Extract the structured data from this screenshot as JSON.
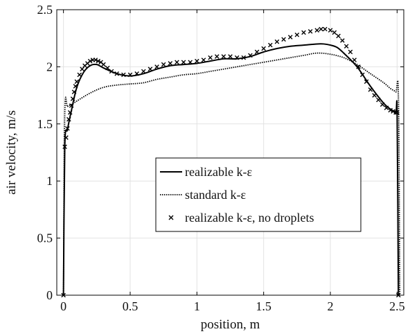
{
  "chart_data": {
    "type": "line",
    "title": "",
    "xlabel": "position, m",
    "ylabel": "air velocity, m/s",
    "xlim": [
      -0.05,
      2.55
    ],
    "ylim": [
      0,
      2.5
    ],
    "xticks": [
      0,
      0.5,
      1,
      1.5,
      2,
      2.5
    ],
    "xtick_labels": [
      "0",
      "0.5",
      "1",
      "1.5",
      "2",
      "2.5"
    ],
    "yticks": [
      0,
      0.5,
      1,
      1.5,
      2,
      2.5
    ],
    "ytick_labels": [
      "0",
      "0.5",
      "1",
      "1.5",
      "2",
      "2.5"
    ],
    "grid": true,
    "legend_position": "center",
    "series": [
      {
        "name": "realizable k-ε",
        "style": "solid",
        "color": "#000000",
        "x": [
          0,
          0.01,
          0.03,
          0.06,
          0.1,
          0.15,
          0.2,
          0.25,
          0.3,
          0.4,
          0.5,
          0.6,
          0.7,
          0.8,
          0.9,
          1.0,
          1.1,
          1.2,
          1.3,
          1.4,
          1.5,
          1.6,
          1.7,
          1.8,
          1.9,
          1.95,
          2.0,
          2.05,
          2.1,
          2.2,
          2.3,
          2.4,
          2.45,
          2.49,
          2.5,
          2.51
        ],
        "y": [
          0,
          1.3,
          1.45,
          1.62,
          1.82,
          1.95,
          2.01,
          2.02,
          1.99,
          1.94,
          1.92,
          1.94,
          1.98,
          2.01,
          2.02,
          2.03,
          2.05,
          2.07,
          2.07,
          2.09,
          2.13,
          2.16,
          2.18,
          2.19,
          2.2,
          2.2,
          2.19,
          2.17,
          2.12,
          2.0,
          1.83,
          1.68,
          1.63,
          1.6,
          1.58,
          0
        ]
      },
      {
        "name": "standard k-ε",
        "style": "dotted",
        "color": "#000000",
        "x": [
          0,
          0.01,
          0.03,
          0.06,
          0.1,
          0.2,
          0.3,
          0.4,
          0.5,
          0.6,
          0.7,
          0.8,
          0.9,
          1.0,
          1.1,
          1.2,
          1.3,
          1.4,
          1.5,
          1.6,
          1.7,
          1.8,
          1.9,
          2.0,
          2.1,
          2.2,
          2.3,
          2.4,
          2.45,
          2.49,
          2.51,
          2.52
        ],
        "y": [
          0,
          1.6,
          1.65,
          1.67,
          1.7,
          1.77,
          1.82,
          1.84,
          1.85,
          1.86,
          1.89,
          1.91,
          1.93,
          1.94,
          1.96,
          1.98,
          2.0,
          2.02,
          2.04,
          2.06,
          2.08,
          2.1,
          2.12,
          2.11,
          2.08,
          2.02,
          1.94,
          1.86,
          1.81,
          1.78,
          1.74,
          0
        ]
      },
      {
        "name": "realizable k-ε, no droplets",
        "style": "markers",
        "marker": "x",
        "color": "#000000",
        "x": [
          0,
          0.01,
          0.02,
          0.03,
          0.04,
          0.05,
          0.06,
          0.07,
          0.08,
          0.09,
          0.1,
          0.12,
          0.14,
          0.16,
          0.18,
          0.2,
          0.22,
          0.24,
          0.26,
          0.28,
          0.3,
          0.33,
          0.36,
          0.4,
          0.45,
          0.5,
          0.55,
          0.6,
          0.65,
          0.7,
          0.75,
          0.8,
          0.85,
          0.9,
          0.95,
          1.0,
          1.05,
          1.1,
          1.15,
          1.2,
          1.25,
          1.3,
          1.35,
          1.4,
          1.45,
          1.5,
          1.55,
          1.6,
          1.65,
          1.7,
          1.75,
          1.8,
          1.85,
          1.9,
          1.93,
          1.96,
          2.0,
          2.03,
          2.06,
          2.09,
          2.12,
          2.15,
          2.18,
          2.21,
          2.24,
          2.27,
          2.3,
          2.33,
          2.36,
          2.39,
          2.42,
          2.45,
          2.47,
          2.49,
          2.5,
          2.51
        ],
        "y": [
          0,
          1.3,
          1.38,
          1.46,
          1.54,
          1.6,
          1.66,
          1.72,
          1.78,
          1.83,
          1.87,
          1.93,
          1.98,
          2.01,
          2.03,
          2.05,
          2.06,
          2.06,
          2.05,
          2.04,
          2.02,
          1.99,
          1.96,
          1.94,
          1.93,
          1.93,
          1.94,
          1.96,
          1.98,
          2.0,
          2.02,
          2.03,
          2.04,
          2.04,
          2.04,
          2.05,
          2.06,
          2.08,
          2.09,
          2.09,
          2.09,
          2.08,
          2.08,
          2.1,
          2.13,
          2.16,
          2.19,
          2.22,
          2.24,
          2.26,
          2.28,
          2.3,
          2.31,
          2.32,
          2.33,
          2.33,
          2.32,
          2.3,
          2.27,
          2.23,
          2.18,
          2.13,
          2.06,
          2.0,
          1.93,
          1.87,
          1.8,
          1.75,
          1.71,
          1.67,
          1.64,
          1.62,
          1.61,
          1.6,
          1.6,
          0
        ]
      }
    ]
  }
}
